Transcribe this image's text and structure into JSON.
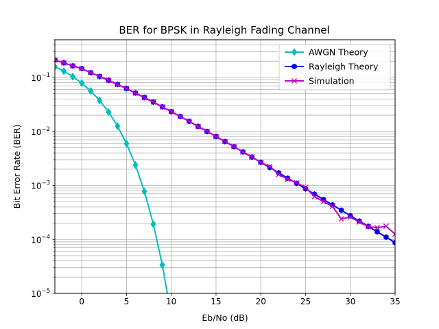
{
  "chart_data": {
    "type": "line",
    "title": "BER for BPSK in Rayleigh Fading Channel",
    "xlabel": "Eb/No (dB)",
    "ylabel": "Bit Error Rate (BER)",
    "xscale": "linear",
    "yscale": "log",
    "xlim": [
      -3,
      35
    ],
    "ylim": [
      1e-05,
      0.5
    ],
    "grid": true,
    "legend_position": "top-right",
    "x_ticks": [
      {
        "value": 0,
        "label": "0"
      },
      {
        "value": 5,
        "label": "5"
      },
      {
        "value": 10,
        "label": "10"
      },
      {
        "value": 15,
        "label": "15"
      },
      {
        "value": 20,
        "label": "20"
      },
      {
        "value": 25,
        "label": "25"
      },
      {
        "value": 30,
        "label": "30"
      },
      {
        "value": 35,
        "label": "35"
      }
    ],
    "y_ticks": [
      {
        "value": 1e-05,
        "base": "10",
        "exp": "−5"
      },
      {
        "value": 0.0001,
        "base": "10",
        "exp": "−4"
      },
      {
        "value": 0.001,
        "base": "10",
        "exp": "−3"
      },
      {
        "value": 0.01,
        "base": "10",
        "exp": "−2"
      },
      {
        "value": 0.1,
        "base": "10",
        "exp": "−1"
      }
    ],
    "series": [
      {
        "name": "AWGN Theory",
        "color": "#00bfbf",
        "marker": "diamond",
        "x": [
          -3,
          -2,
          -1,
          0,
          1,
          2,
          3,
          4,
          5,
          6,
          7,
          8,
          9,
          10
        ],
        "y": [
          0.158,
          0.131,
          0.104,
          0.0786,
          0.0563,
          0.0375,
          0.0229,
          0.0125,
          0.00595,
          0.00239,
          0.000773,
          0.000191,
          3.36e-05,
          3.87e-06
        ]
      },
      {
        "name": "Rayleigh Theory",
        "color": "#0000ff",
        "marker": "hexagon",
        "x": [
          -3,
          -2,
          -1,
          0,
          1,
          2,
          3,
          4,
          5,
          6,
          7,
          8,
          9,
          10,
          11,
          12,
          13,
          14,
          15,
          16,
          17,
          18,
          19,
          20,
          21,
          22,
          23,
          24,
          25,
          26,
          27,
          28,
          29,
          30,
          31,
          32,
          33,
          34,
          35
        ],
        "y": [
          0.2109,
          0.1867,
          0.1638,
          0.1464,
          0.1226,
          0.1047,
          0.0886,
          0.0745,
          0.0622,
          0.0516,
          0.0426,
          0.035,
          0.0286,
          0.0233,
          0.019,
          0.0154,
          0.0124,
          0.01,
          0.00807,
          0.00649,
          0.00521,
          0.00418,
          0.00335,
          0.00268,
          0.00214,
          0.00171,
          0.00136,
          0.00109,
          0.000866,
          0.000689,
          0.000548,
          0.000436,
          0.000346,
          0.000275,
          0.000219,
          0.000174,
          0.000138,
          0.00011,
          8.72e-05
        ]
      },
      {
        "name": "Simulation",
        "color": "#bf00bf",
        "marker": "x",
        "x": [
          -3,
          -2,
          -1,
          0,
          1,
          2,
          3,
          4,
          5,
          6,
          7,
          8,
          9,
          10,
          11,
          12,
          13,
          14,
          15,
          16,
          17,
          18,
          19,
          20,
          21,
          22,
          23,
          24,
          25,
          26,
          27,
          28,
          29,
          30,
          31,
          32,
          33,
          34,
          35
        ],
        "y": [
          0.2111,
          0.186,
          0.1645,
          0.146,
          0.123,
          0.105,
          0.0889,
          0.074,
          0.0625,
          0.0512,
          0.0423,
          0.0352,
          0.0284,
          0.0235,
          0.0188,
          0.0155,
          0.0122,
          0.0101,
          0.008,
          0.00652,
          0.00525,
          0.00415,
          0.00338,
          0.00265,
          0.00225,
          0.0016,
          0.0013,
          0.00112,
          0.00092,
          0.00062,
          0.0005,
          0.00041,
          0.00024,
          0.00026,
          0.00021,
          0.000172,
          0.000165,
          0.000175,
          0.000125
        ]
      }
    ]
  }
}
